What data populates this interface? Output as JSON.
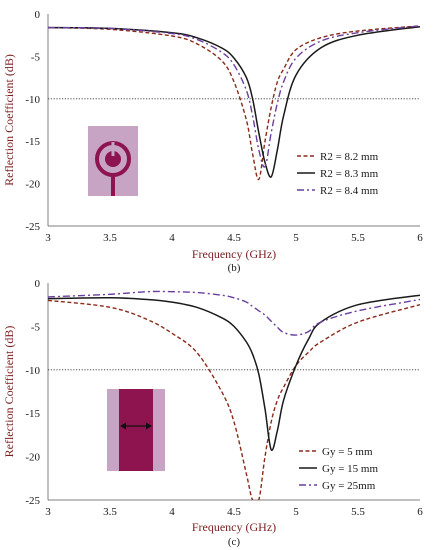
{
  "chart_data": [
    {
      "type": "line",
      "panel_label": "(b)",
      "xlabel": "Frequency (GHz)",
      "ylabel": "Reflection Coefficient (dB)",
      "xlim": [
        3,
        6
      ],
      "ylim": [
        -25,
        0
      ],
      "xticks": [
        "3",
        "3.5",
        "4",
        "4.5",
        "5",
        "5.5",
        "6"
      ],
      "yticks": [
        "0",
        "-5",
        "-10",
        "-15",
        "-20",
        "-25"
      ],
      "reference_line": -10,
      "grid": false,
      "legend_position": "bottom-right",
      "inset": "circular-ring-patch-icon",
      "x": [
        3.0,
        3.5,
        4.0,
        4.2,
        4.4,
        4.5,
        4.6,
        4.65,
        4.7,
        4.75,
        4.8,
        4.85,
        4.9,
        5.0,
        5.2,
        5.5,
        6.0
      ],
      "series": [
        {
          "name": "R2 = 8.2 mm",
          "color": "#8b2a1a",
          "dash": "dashed",
          "values": [
            -1.6,
            -1.8,
            -2.6,
            -3.5,
            -5.5,
            -8.0,
            -12.5,
            -16.5,
            -19.5,
            -15.0,
            -11.0,
            -8.0,
            -6.5,
            -4.2,
            -2.8,
            -2.0,
            -1.4
          ]
        },
        {
          "name": "R2 = 8.3 mm",
          "color": "#1a1a1a",
          "dash": "solid",
          "values": [
            -1.6,
            -1.7,
            -2.2,
            -2.8,
            -4.0,
            -5.2,
            -7.5,
            -10.0,
            -14.0,
            -17.5,
            -19.2,
            -16.0,
            -12.0,
            -7.2,
            -4.0,
            -2.5,
            -1.5
          ]
        },
        {
          "name": "R2 = 8.4 mm",
          "color": "#6a3fa0",
          "dash": "dashdot",
          "values": [
            -1.6,
            -1.7,
            -2.3,
            -3.0,
            -4.5,
            -6.0,
            -9.0,
            -12.0,
            -16.0,
            -18.0,
            -14.0,
            -10.5,
            -8.0,
            -5.2,
            -3.2,
            -2.2,
            -1.4
          ]
        }
      ]
    },
    {
      "type": "line",
      "panel_label": "(c)",
      "xlabel": "Frequency (GHz)",
      "ylabel": "Reflection Coefficient (dB)",
      "xlim": [
        3,
        6
      ],
      "ylim": [
        -25,
        0
      ],
      "xticks": [
        "3",
        "3.5",
        "4",
        "4.5",
        "5",
        "5.5",
        "6"
      ],
      "yticks": [
        "0",
        "-5",
        "-10",
        "-15",
        "-20",
        "-25"
      ],
      "reference_line": -10,
      "grid": false,
      "legend_position": "bottom-right",
      "inset": "rectangular-patch-icon",
      "x": [
        3.0,
        3.5,
        3.8,
        4.0,
        4.2,
        4.4,
        4.5,
        4.6,
        4.65,
        4.7,
        4.75,
        4.8,
        4.85,
        4.9,
        5.0,
        5.1,
        5.2,
        5.5,
        6.0
      ],
      "series": [
        {
          "name": "Gy = 5 mm",
          "color": "#8b2a1a",
          "dash": "dashed",
          "values": [
            -2.0,
            -2.8,
            -4.2,
            -5.8,
            -8.0,
            -12.5,
            -16.0,
            -22.0,
            -25.0,
            -25.0,
            -20.0,
            -16.0,
            -13.5,
            -12.0,
            -9.5,
            -8.0,
            -6.8,
            -4.5,
            -2.5
          ]
        },
        {
          "name": "Gy = 15 mm",
          "color": "#1a1a1a",
          "dash": "solid",
          "values": [
            -1.8,
            -1.7,
            -1.9,
            -2.2,
            -2.8,
            -4.0,
            -5.0,
            -6.8,
            -8.2,
            -10.5,
            -14.5,
            -19.2,
            -17.0,
            -13.5,
            -9.5,
            -6.5,
            -4.5,
            -2.5,
            -1.4
          ]
        },
        {
          "name": "Gy = 25mm",
          "color": "#6a3fa0",
          "dash": "dashdot",
          "values": [
            -1.6,
            -1.3,
            -1.0,
            -1.0,
            -1.1,
            -1.4,
            -1.7,
            -2.2,
            -2.7,
            -3.2,
            -3.7,
            -4.4,
            -5.1,
            -5.7,
            -6.0,
            -5.6,
            -4.5,
            -3.2,
            -1.9
          ]
        }
      ]
    }
  ]
}
